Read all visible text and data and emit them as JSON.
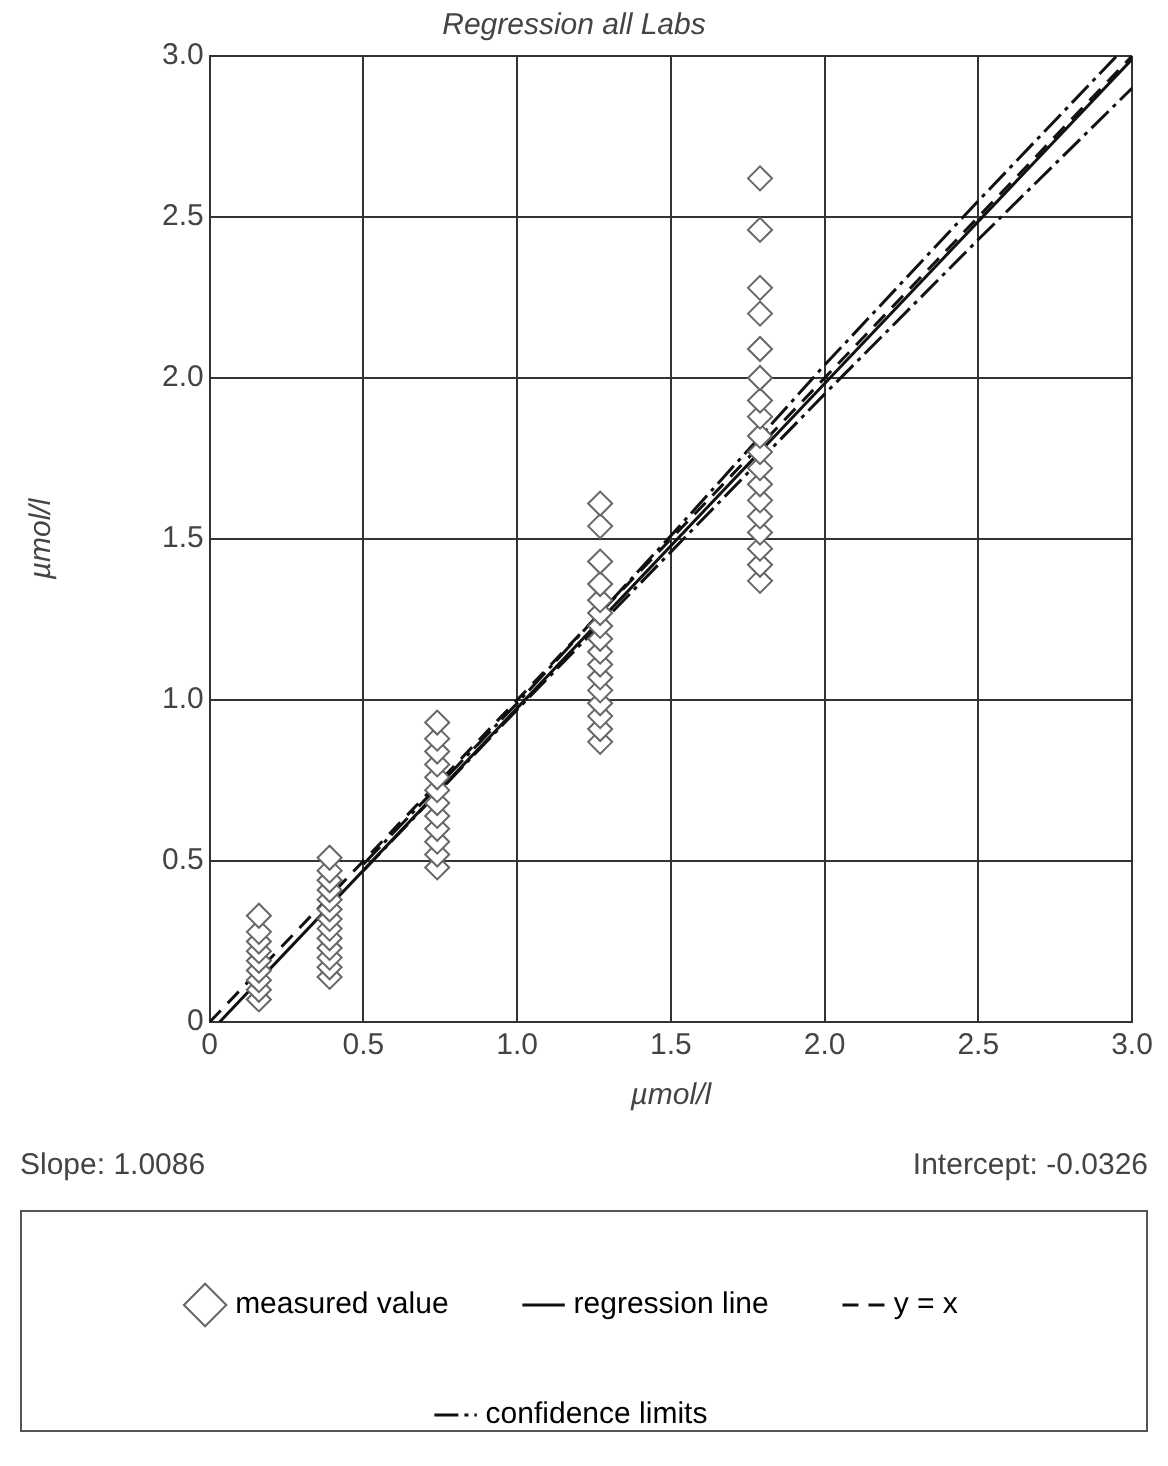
{
  "chart_data": {
    "type": "scatter",
    "title": "Regression all Labs",
    "xlabel": "µmol/l",
    "ylabel": "µmol/l",
    "xlim": [
      0,
      3
    ],
    "ylim": [
      0,
      3
    ],
    "xticks": [
      {
        "value": 0,
        "label": "0"
      },
      0.5,
      {
        "value": 1,
        "label": "1.0"
      },
      1.5,
      {
        "value": 2,
        "label": "2.0"
      },
      2.5,
      {
        "value": 3,
        "label": "3.0"
      }
    ],
    "yticks": [
      {
        "value": 0,
        "label": "0"
      },
      0.5,
      {
        "value": 1,
        "label": "1.0"
      },
      1.5,
      {
        "value": 2,
        "label": "2.0"
      },
      2.5,
      {
        "value": 3,
        "label": "3.0"
      }
    ],
    "grid": true,
    "legend": "bottom",
    "marker": "diamond",
    "annotations": [
      "Slope: 1.0086",
      "Intercept: -0.0326"
    ],
    "series": [
      {
        "name": "measured value",
        "color": "#666666",
        "x": [
          0.16,
          0.16,
          0.16,
          0.16,
          0.16,
          0.16,
          0.16,
          0.16,
          0.16,
          0.39,
          0.39,
          0.39,
          0.39,
          0.39,
          0.39,
          0.39,
          0.39,
          0.39,
          0.39,
          0.39,
          0.39,
          0.39,
          0.74,
          0.74,
          0.74,
          0.74,
          0.74,
          0.74,
          0.74,
          0.74,
          0.74,
          0.74,
          0.74,
          0.74,
          1.27,
          1.27,
          1.27,
          1.27,
          1.27,
          1.27,
          1.27,
          1.27,
          1.27,
          1.27,
          1.27,
          1.27,
          1.27,
          1.27,
          1.27,
          1.27,
          1.79,
          1.79,
          1.79,
          1.79,
          1.79,
          1.79,
          1.79,
          1.79,
          1.79,
          1.79,
          1.79,
          1.79,
          1.79,
          1.79,
          1.79,
          1.79,
          1.79,
          1.79
        ],
        "values": [
          0.07,
          0.1,
          0.13,
          0.16,
          0.19,
          0.22,
          0.25,
          0.28,
          0.33,
          0.14,
          0.17,
          0.2,
          0.23,
          0.26,
          0.29,
          0.32,
          0.35,
          0.38,
          0.41,
          0.44,
          0.47,
          0.51,
          0.48,
          0.52,
          0.56,
          0.6,
          0.64,
          0.68,
          0.72,
          0.76,
          0.8,
          0.84,
          0.88,
          0.93,
          0.87,
          0.91,
          0.95,
          0.99,
          1.03,
          1.07,
          1.11,
          1.15,
          1.19,
          1.23,
          1.27,
          1.31,
          1.36,
          1.43,
          1.54,
          1.61,
          1.37,
          1.42,
          1.47,
          1.52,
          1.57,
          1.62,
          1.67,
          1.72,
          1.77,
          1.82,
          1.88,
          1.93,
          2.0,
          2.09,
          2.2,
          2.28,
          2.46,
          2.62
        ]
      },
      {
        "name": "regression line",
        "type": "line",
        "color": "#111111",
        "line_style": "solid",
        "marker": "none",
        "x": [
          0.0323,
          3
        ],
        "values": [
          0,
          2.99
        ]
      },
      {
        "name": "y = x",
        "type": "line",
        "color": "#111111",
        "line_style": "dashed",
        "marker": "none",
        "x": [
          0,
          3
        ],
        "values": [
          0,
          3
        ]
      },
      {
        "name": "confidence limits",
        "type": "line",
        "color": "#111111",
        "line_style": "dashdot",
        "marker": "none",
        "x": [
          0.5,
          1,
          1.5,
          2,
          2.5,
          2.95
        ],
        "values": [
          0.49,
          0.99,
          1.51,
          2.04,
          2.55,
          3
        ]
      },
      {
        "type": "line",
        "color": "#111111",
        "line_style": "dashdot",
        "marker": "none",
        "x": [
          0.5,
          1,
          1.5,
          2,
          2.5,
          3
        ],
        "values": [
          0.47,
          0.97,
          1.46,
          1.95,
          2.43,
          2.9
        ]
      }
    ]
  }
}
